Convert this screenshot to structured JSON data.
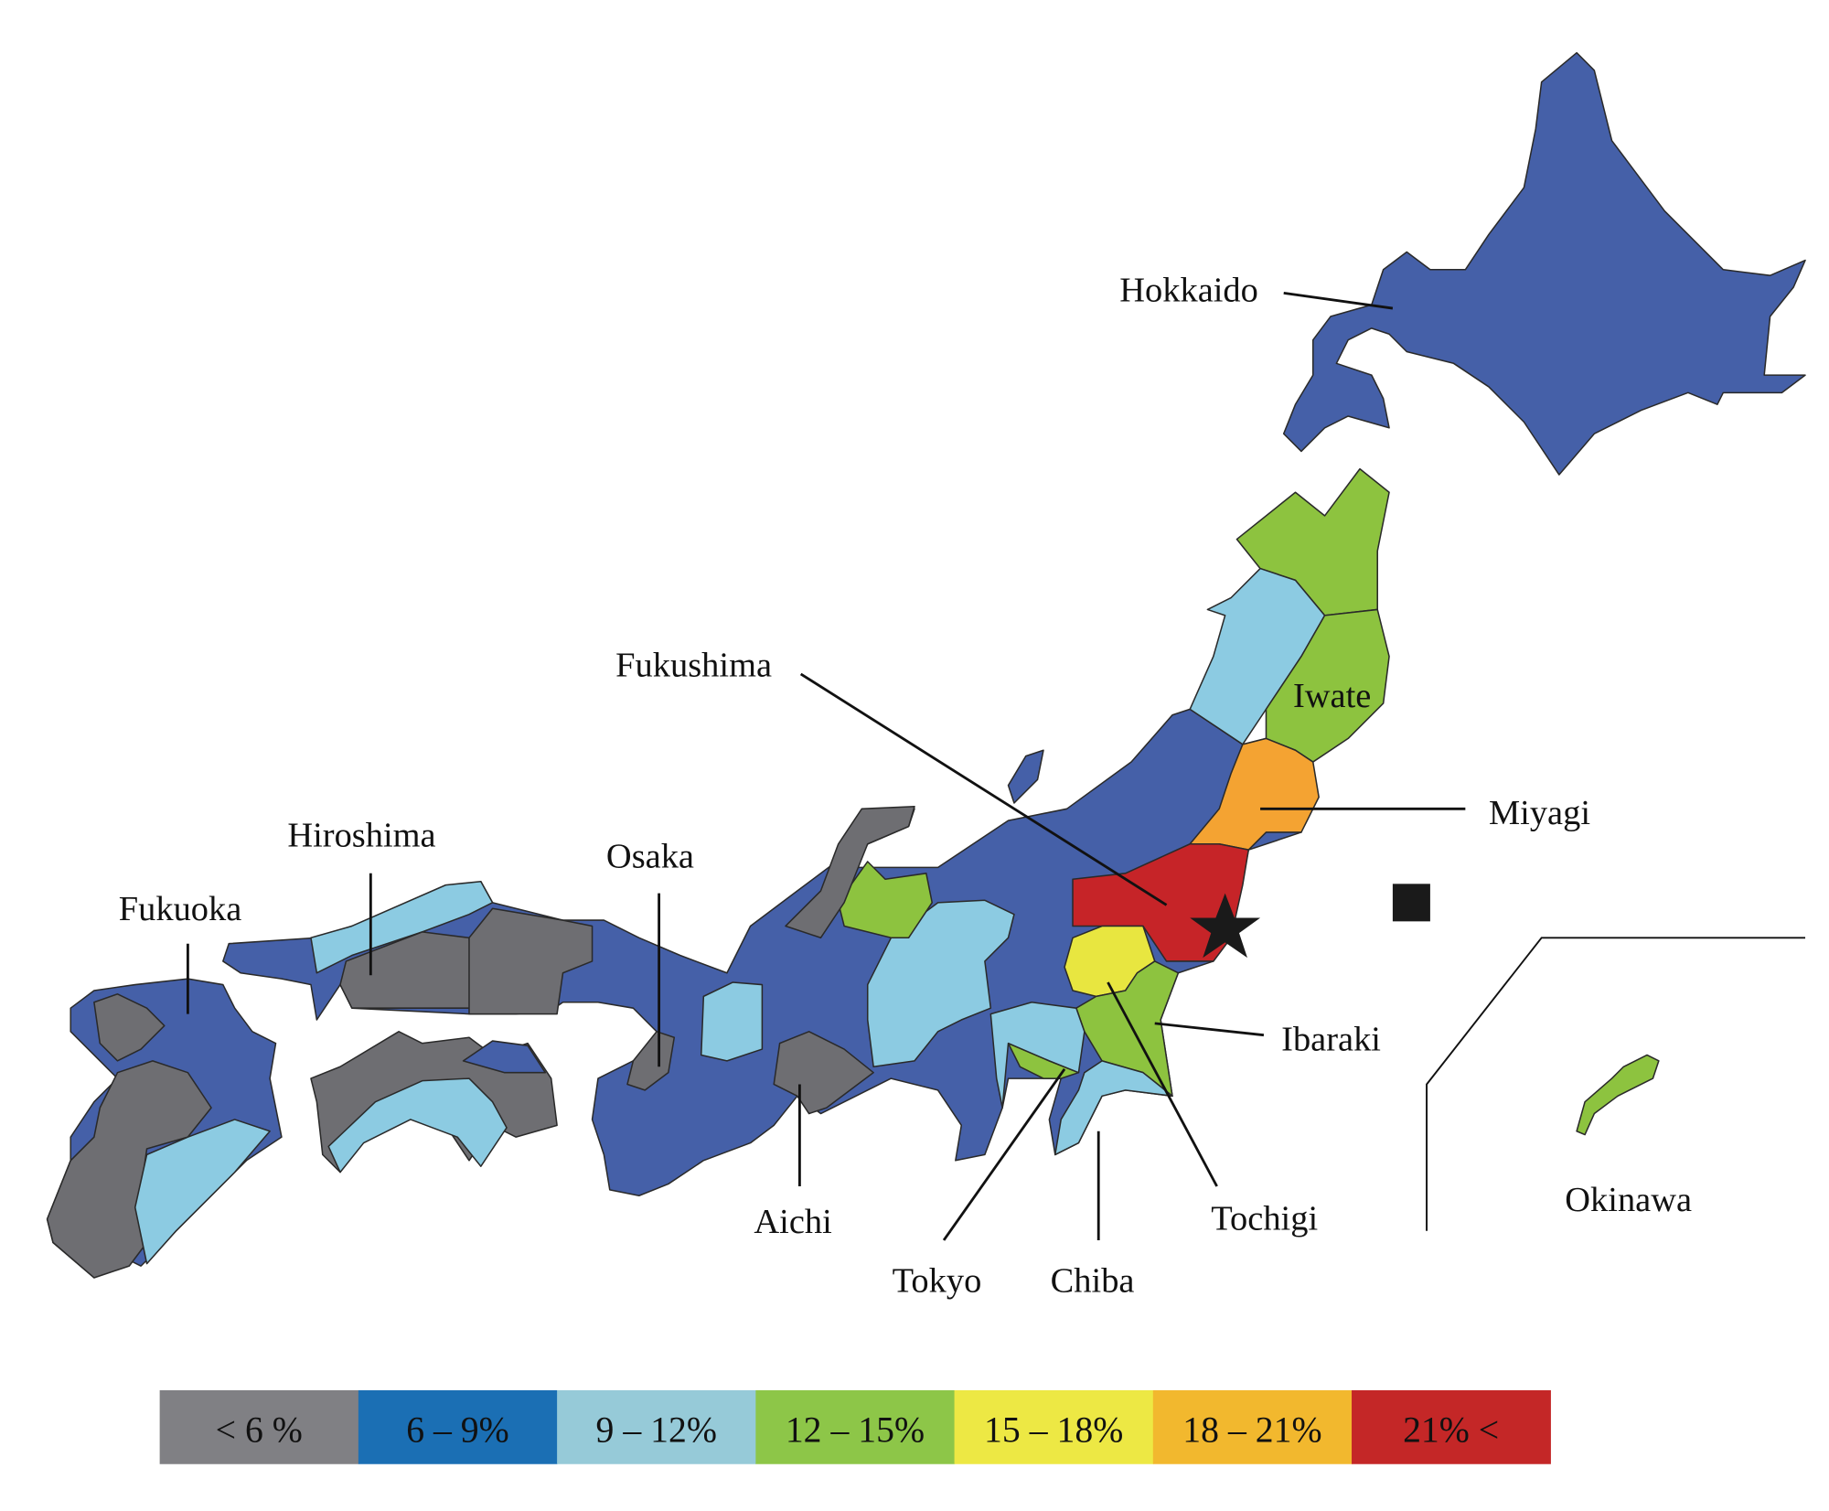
{
  "legend": [
    {
      "label": "< 6 %",
      "color": "#808084"
    },
    {
      "label": "6 – 9%",
      "color": "#1b6fb4"
    },
    {
      "label": "9 – 12%",
      "color": "#96cad8"
    },
    {
      "label": "12 – 15%",
      "color": "#8dc648"
    },
    {
      "label": "15 – 18%",
      "color": "#ede844"
    },
    {
      "label": "18 – 21%",
      "color": "#f2b82e"
    },
    {
      "label": "21% <",
      "color": "#c42727"
    }
  ],
  "map_colors": {
    "gray": "#6e6e72",
    "blue": "#4560a8",
    "light_blue": "#8ccbe2",
    "green": "#8dc33f",
    "yellow": "#e8e640",
    "orange": "#f4a332",
    "red": "#c62428"
  },
  "labels": {
    "hokkaido": "Hokkaido",
    "iwate": "Iwate",
    "miyagi": "Miyagi",
    "fukushima": "Fukushima",
    "ibaraki": "Ibaraki",
    "tochigi": "Tochigi",
    "chiba": "Chiba",
    "tokyo": "Tokyo",
    "aichi": "Aichi",
    "osaka": "Osaka",
    "hiroshima": "Hiroshima",
    "fukuoka": "Fukuoka",
    "okinawa": "Okinawa"
  },
  "labeled_region_classes": {
    "Hokkaido": "6 – 9%",
    "Iwate": "12 – 15%",
    "Miyagi": "18 – 21%",
    "Fukushima": "21% <",
    "Ibaraki": "12 – 15%",
    "Tochigi": "15 – 18%",
    "Chiba": "9 – 12%",
    "Tokyo": "12 – 15%",
    "Aichi": "< 6 %",
    "Osaka": "< 6 %",
    "Hiroshima": "< 6 %",
    "Fukuoka": "6 – 9%",
    "Okinawa": "12 – 15%"
  },
  "markers": {
    "epicenter": "star-icon",
    "nuclear_plant": "square-icon"
  }
}
